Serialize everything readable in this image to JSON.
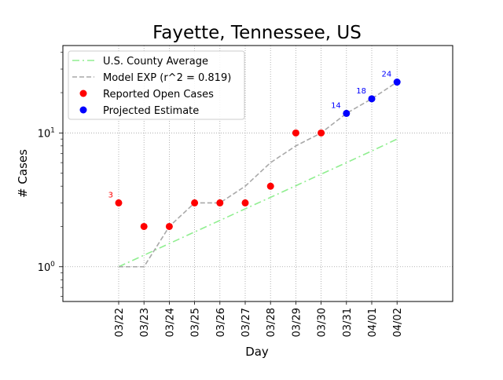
{
  "chart_data": {
    "type": "line",
    "title": "Fayette, Tennessee, US",
    "xlabel": "Day",
    "ylabel": "# Cases",
    "yscale": "log",
    "ylim": [
      0.55,
      45
    ],
    "grid": true,
    "legend_position": "top-left",
    "x": [
      "03/22",
      "03/23",
      "03/24",
      "03/25",
      "03/26",
      "03/27",
      "03/28",
      "03/29",
      "03/30",
      "03/31",
      "04/01",
      "04/02"
    ],
    "y_ticks": [
      {
        "value": 1,
        "label": "10^0"
      },
      {
        "value": 10,
        "label": "10^1"
      }
    ],
    "series": [
      {
        "name": "U.S. County Average",
        "style": "dash-dot",
        "color": "#90ee90",
        "values": [
          1.0,
          1.22,
          1.49,
          1.82,
          2.22,
          2.71,
          3.3,
          4.03,
          4.92,
          6.0,
          7.33,
          9.0
        ]
      },
      {
        "name": "Model EXP (r^2 = 0.819)",
        "style": "dashed",
        "color": "#a9a9a9",
        "values": [
          1,
          1,
          2,
          3,
          3,
          4,
          6,
          8,
          10,
          14,
          18,
          24
        ]
      },
      {
        "name": "Reported Open Cases",
        "style": "marker",
        "color": "#ff0000",
        "x": [
          "03/22",
          "03/23",
          "03/24",
          "03/25",
          "03/26",
          "03/27",
          "03/28",
          "03/29",
          "03/30"
        ],
        "values": [
          3,
          2,
          2,
          3,
          3,
          3,
          4,
          10,
          10
        ]
      },
      {
        "name": "Projected Estimate",
        "style": "marker",
        "color": "#0000ff",
        "x": [
          "03/31",
          "04/01",
          "04/02"
        ],
        "values": [
          14,
          18,
          24
        ]
      }
    ],
    "annotations": [
      {
        "x": "03/22",
        "value": 3,
        "text": "3",
        "color": "#ff0000"
      },
      {
        "x": "03/31",
        "value": 14,
        "text": "14",
        "color": "#0000ff"
      },
      {
        "x": "04/01",
        "value": 18,
        "text": "18",
        "color": "#0000ff"
      },
      {
        "x": "04/02",
        "value": 24,
        "text": "24",
        "color": "#0000ff"
      }
    ]
  }
}
